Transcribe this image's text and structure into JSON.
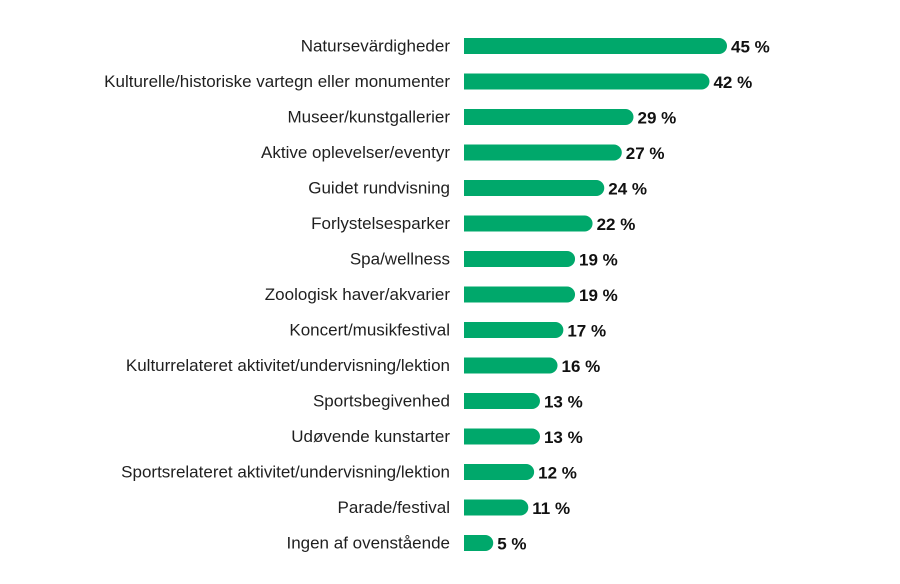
{
  "chart_data": {
    "type": "bar",
    "orientation": "horizontal",
    "title": "",
    "xlabel": "",
    "ylabel": "",
    "xlim": [
      0,
      45
    ],
    "grid": false,
    "legend": "none",
    "bar_color": "#00a86b",
    "value_suffix": " %",
    "categories": [
      "Natursevärdigheder",
      "Kulturelle/historiske vartegn eller monumenter",
      "Museer/kunstgallerier",
      "Aktive oplevelser/eventyr",
      "Guidet rundvisning",
      "Forlystelsesparker",
      "Spa/wellness",
      "Zoologisk haver/akvarier",
      "Koncert/musikfestival",
      "Kulturrelateret aktivitet/undervisning/lektion",
      "Sportsbegivenhed",
      "Udøvende kunstarter",
      "Sportsrelateret aktivitet/undervisning/lektion",
      "Parade/festival",
      "Ingen af ovenstående"
    ],
    "values": [
      45,
      42,
      29,
      27,
      24,
      22,
      19,
      19,
      17,
      16,
      13,
      13,
      12,
      11,
      5
    ],
    "value_labels": [
      "45 %",
      "42 %",
      "29 %",
      "27 %",
      "24 %",
      "22 %",
      "19 %",
      "19 %",
      "17 %",
      "16 %",
      "13 %",
      "13 %",
      "12 %",
      "11 %",
      "5 %"
    ]
  }
}
